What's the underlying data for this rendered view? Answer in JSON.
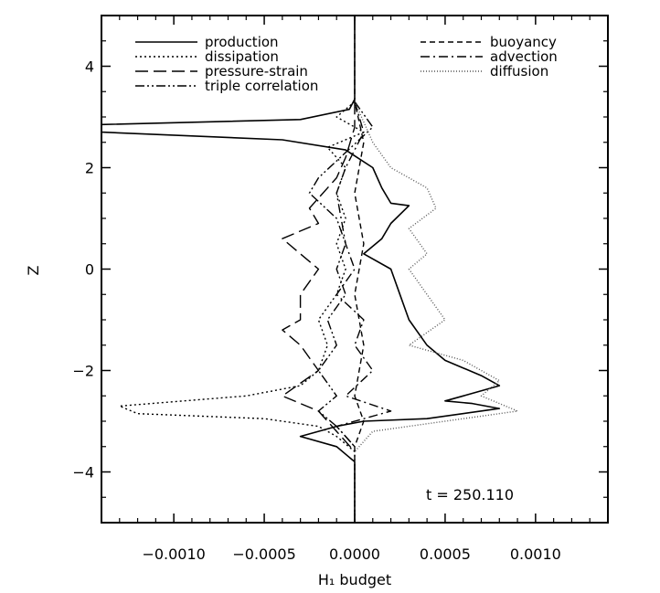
{
  "chart_data": {
    "type": "line",
    "title": "",
    "xlabel": "H₁ budget",
    "ylabel": "Z",
    "xlim": [
      -0.0014,
      0.0014
    ],
    "ylim": [
      -5,
      5
    ],
    "xticks": [
      -0.001,
      -0.0005,
      0.0,
      0.0005,
      0.001
    ],
    "xtick_labels": [
      "−0.0010",
      "−0.0005",
      "0.0000",
      "0.0005",
      "0.0010"
    ],
    "yticks": [
      -4,
      -2,
      0,
      2,
      4
    ],
    "ytick_labels": [
      "−4",
      "−2",
      "0",
      "2",
      "4"
    ],
    "grid": false,
    "legend_placement": "top",
    "annotation": "t = 250.110",
    "series": [
      {
        "name": "production",
        "style": "solid",
        "points": [
          [
            0.0,
            5.0
          ],
          [
            0.0,
            3.6
          ],
          [
            0.0,
            3.35
          ],
          [
            -3e-05,
            3.15
          ],
          [
            -0.0003,
            2.95
          ],
          [
            -0.0014,
            2.85
          ],
          [
            -0.0014,
            2.7
          ],
          [
            -0.0004,
            2.55
          ],
          [
            -5e-05,
            2.35
          ],
          [
            0.0001,
            2.0
          ],
          [
            0.00015,
            1.6
          ],
          [
            0.0002,
            1.3
          ],
          [
            0.0003,
            1.25
          ],
          [
            0.0002,
            0.9
          ],
          [
            0.00015,
            0.6
          ],
          [
            5e-05,
            0.3
          ],
          [
            0.0002,
            0.0
          ],
          [
            0.00025,
            -0.5
          ],
          [
            0.0003,
            -1.0
          ],
          [
            0.0004,
            -1.5
          ],
          [
            0.0005,
            -1.8
          ],
          [
            0.0007,
            -2.1
          ],
          [
            0.0008,
            -2.3
          ],
          [
            0.0006,
            -2.5
          ],
          [
            0.0005,
            -2.6
          ],
          [
            0.00065,
            -2.65
          ],
          [
            0.0008,
            -2.75
          ],
          [
            0.0004,
            -2.95
          ],
          [
            5e-05,
            -3.0
          ],
          [
            -0.0001,
            -3.1
          ],
          [
            -0.0003,
            -3.3
          ],
          [
            -0.0001,
            -3.5
          ],
          [
            0.0,
            -3.8
          ],
          [
            0.0,
            -5.0
          ]
        ]
      },
      {
        "name": "dissipation",
        "style": "dotted",
        "points": [
          [
            0.0,
            3.3
          ],
          [
            -0.0001,
            3.0
          ],
          [
            5e-05,
            2.7
          ],
          [
            -0.00015,
            2.4
          ],
          [
            -5e-05,
            2.0
          ],
          [
            -0.0001,
            1.5
          ],
          [
            -5e-05,
            1.0
          ],
          [
            -0.0001,
            0.5
          ],
          [
            -5e-05,
            0.0
          ],
          [
            -0.0001,
            -0.5
          ],
          [
            -0.0002,
            -1.0
          ],
          [
            -0.00015,
            -1.5
          ],
          [
            -0.0002,
            -2.0
          ],
          [
            -0.0003,
            -2.3
          ],
          [
            -0.0006,
            -2.5
          ],
          [
            -0.0013,
            -2.7
          ],
          [
            -0.0012,
            -2.85
          ],
          [
            -0.0005,
            -2.95
          ],
          [
            -0.0002,
            -3.1
          ],
          [
            -0.0001,
            -3.3
          ],
          [
            0.0,
            -3.6
          ],
          [
            0.0,
            -5.0
          ]
        ]
      },
      {
        "name": "pressure-strain",
        "style": "longdash",
        "points": [
          [
            0.0,
            3.3
          ],
          [
            0.0,
            2.8
          ],
          [
            -5e-05,
            2.2
          ],
          [
            -0.0001,
            1.8
          ],
          [
            -0.00025,
            1.2
          ],
          [
            -0.0002,
            0.9
          ],
          [
            -0.0004,
            0.6
          ],
          [
            -0.0003,
            0.3
          ],
          [
            -0.0002,
            0.0
          ],
          [
            -0.0003,
            -0.5
          ],
          [
            -0.0003,
            -1.0
          ],
          [
            -0.0004,
            -1.2
          ],
          [
            -0.0003,
            -1.5
          ],
          [
            -0.0002,
            -2.0
          ],
          [
            -0.0004,
            -2.5
          ],
          [
            -0.0002,
            -2.8
          ],
          [
            -0.0001,
            -3.2
          ],
          [
            0.0,
            -3.6
          ]
        ]
      },
      {
        "name": "triple correlation",
        "style": "dashdotdot",
        "points": [
          [
            0.0,
            3.3
          ],
          [
            0.0001,
            2.8
          ],
          [
            -5e-05,
            2.3
          ],
          [
            -0.0002,
            1.8
          ],
          [
            -0.00025,
            1.5
          ],
          [
            -0.0001,
            1.0
          ],
          [
            -5e-05,
            0.5
          ],
          [
            -0.0001,
            0.0
          ],
          [
            -5e-05,
            -0.5
          ],
          [
            -0.00015,
            -1.0
          ],
          [
            -0.0001,
            -1.5
          ],
          [
            -0.0002,
            -2.0
          ],
          [
            -0.0001,
            -2.5
          ],
          [
            -0.0002,
            -2.8
          ],
          [
            -0.0001,
            -3.1
          ],
          [
            0.0,
            -3.5
          ]
        ]
      },
      {
        "name": "buoyancy",
        "style": "dashed",
        "points": [
          [
            0.0,
            5.0
          ],
          [
            0.0,
            3.3
          ],
          [
            5e-05,
            2.5
          ],
          [
            0.0,
            1.5
          ],
          [
            5e-05,
            0.5
          ],
          [
            0.0,
            -0.5
          ],
          [
            5e-05,
            -1.5
          ],
          [
            0.0,
            -2.5
          ],
          [
            5e-05,
            -3.0
          ],
          [
            0.0,
            -3.5
          ],
          [
            0.0,
            -5.0
          ]
        ]
      },
      {
        "name": "advection",
        "style": "dashdot",
        "points": [
          [
            0.0,
            3.3
          ],
          [
            5e-05,
            2.7
          ],
          [
            -5e-05,
            2.0
          ],
          [
            -0.0001,
            1.5
          ],
          [
            -5e-05,
            0.5
          ],
          [
            0.0,
            0.0
          ],
          [
            -0.0001,
            -0.5
          ],
          [
            5e-05,
            -1.0
          ],
          [
            0.0,
            -1.5
          ],
          [
            0.0001,
            -2.0
          ],
          [
            -5e-05,
            -2.5
          ],
          [
            0.0002,
            -2.8
          ],
          [
            -0.0001,
            -3.1
          ],
          [
            0.0,
            -3.5
          ]
        ]
      },
      {
        "name": "diffusion",
        "style": "finedot",
        "points": [
          [
            0.0,
            3.3
          ],
          [
            0.0001,
            2.5
          ],
          [
            0.0002,
            2.0
          ],
          [
            0.0004,
            1.6
          ],
          [
            0.00045,
            1.2
          ],
          [
            0.0003,
            0.8
          ],
          [
            0.0004,
            0.3
          ],
          [
            0.0003,
            0.0
          ],
          [
            0.0004,
            -0.5
          ],
          [
            0.0005,
            -1.0
          ],
          [
            0.0003,
            -1.5
          ],
          [
            0.0006,
            -1.8
          ],
          [
            0.0008,
            -2.2
          ],
          [
            0.0007,
            -2.5
          ],
          [
            0.0009,
            -2.8
          ],
          [
            0.0005,
            -3.0
          ],
          [
            0.0001,
            -3.2
          ],
          [
            0.0,
            -3.6
          ]
        ]
      }
    ]
  }
}
